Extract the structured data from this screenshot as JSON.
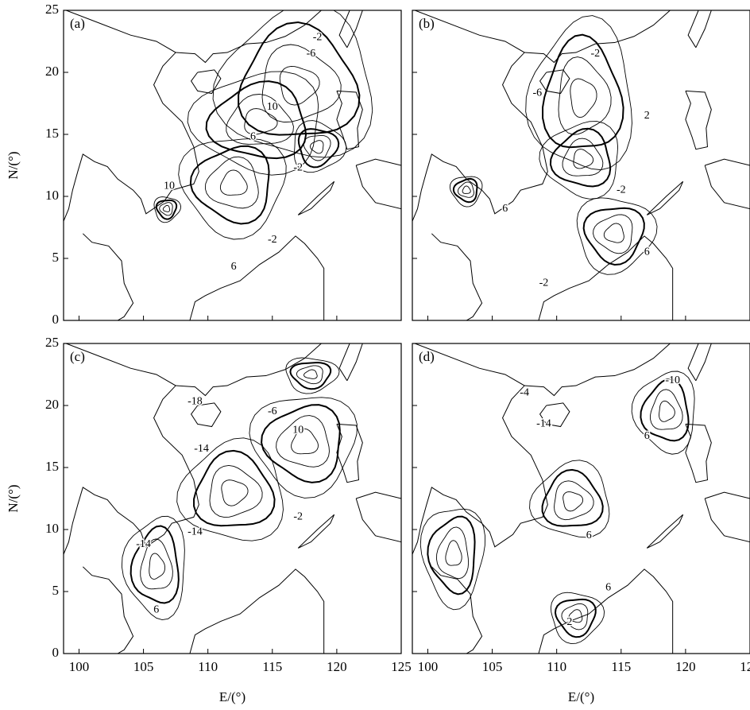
{
  "chart_data": {
    "type": "contour",
    "xlim": [
      98.8,
      125
    ],
    "ylim": [
      0,
      25
    ],
    "xticks": [
      100,
      105,
      110,
      115,
      120,
      125
    ],
    "yticks": [
      0,
      5,
      10,
      15,
      20,
      25
    ],
    "xlabel": "E/(°)",
    "ylabel": "N/(°)",
    "panels": [
      {
        "label": "(a)",
        "contour_labels": [
          "-2",
          "-6",
          "10",
          "6",
          "-2",
          "10",
          "-2",
          "6"
        ]
      },
      {
        "label": "(b)",
        "contour_labels": [
          "-2",
          "-6",
          "2",
          "-2",
          "6",
          "6",
          "-2"
        ]
      },
      {
        "label": "(c)",
        "contour_labels": [
          "-18",
          "-14",
          "-6",
          "10",
          "-14",
          "-2",
          "-14",
          "6"
        ]
      },
      {
        "label": "(d)",
        "contour_labels": [
          "-4",
          "-10",
          "-14",
          "6",
          "6",
          "2",
          "6"
        ]
      }
    ]
  }
}
